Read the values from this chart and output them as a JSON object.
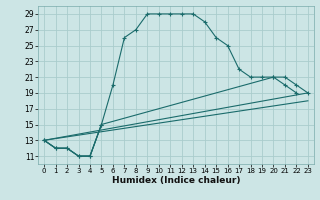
{
  "title": "",
  "xlabel": "Humidex (Indice chaleur)",
  "background_color": "#cce5e5",
  "grid_color": "#aacccc",
  "line_color": "#1a6b6b",
  "xlim": [
    -0.5,
    23.5
  ],
  "ylim": [
    10.0,
    30.0
  ],
  "yticks": [
    11,
    13,
    15,
    17,
    19,
    21,
    23,
    25,
    27,
    29
  ],
  "xticks": [
    0,
    1,
    2,
    3,
    4,
    5,
    6,
    7,
    8,
    9,
    10,
    11,
    12,
    13,
    14,
    15,
    16,
    17,
    18,
    19,
    20,
    21,
    22,
    23
  ],
  "curve1_x": [
    0,
    1,
    2,
    3,
    4,
    5,
    6,
    7,
    8,
    9,
    10,
    11,
    12,
    13,
    14,
    15,
    16,
    17,
    18,
    19,
    20,
    21,
    22
  ],
  "curve1_y": [
    13,
    12,
    12,
    11,
    11,
    15,
    20,
    26,
    27,
    29,
    29,
    29,
    29,
    29,
    28,
    26,
    25,
    22,
    21,
    21,
    21,
    20,
    19
  ],
  "curve2_x": [
    0,
    1,
    2,
    3,
    4,
    5,
    20,
    21,
    22,
    23
  ],
  "curve2_y": [
    13,
    12,
    12,
    11,
    11,
    15,
    21,
    21,
    20,
    19
  ],
  "line3_x": [
    0,
    23
  ],
  "line3_y": [
    13,
    19
  ],
  "line4_x": [
    0,
    23
  ],
  "line4_y": [
    13,
    18
  ],
  "marker_x1": [
    0,
    1,
    2,
    3,
    4,
    5,
    6,
    7,
    8,
    9,
    10,
    11,
    12,
    13,
    14,
    15,
    16,
    17,
    18,
    19,
    20,
    21,
    22
  ],
  "marker_y1": [
    13,
    12,
    12,
    11,
    11,
    15,
    20,
    26,
    27,
    29,
    29,
    29,
    29,
    29,
    28,
    26,
    25,
    22,
    21,
    21,
    21,
    20,
    19
  ],
  "marker_x2": [
    0,
    3,
    4,
    5,
    20,
    21,
    22,
    23
  ],
  "marker_y2": [
    13,
    11,
    11,
    15,
    21,
    21,
    20,
    19
  ]
}
